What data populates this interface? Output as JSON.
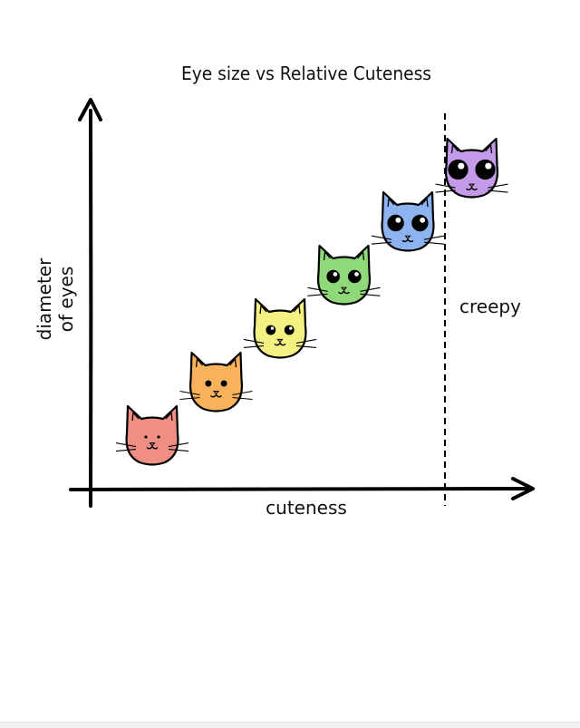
{
  "chart_data": {
    "type": "scatter",
    "title": "Eye size vs Relative Cuteness",
    "xlabel": "cuteness",
    "ylabel": [
      "diameter",
      "of eyes"
    ],
    "grid": false,
    "legend": "none",
    "annotations": [
      {
        "text": "creepy",
        "region": "beyond-dashed-threshold"
      }
    ],
    "series": [
      {
        "points": [
          {
            "x": 1,
            "y": 1,
            "color": "#ef8f84"
          },
          {
            "x": 2,
            "y": 2,
            "color": "#f9b25c"
          },
          {
            "x": 3,
            "y": 3,
            "color": "#f4f082"
          },
          {
            "x": 4,
            "y": 4,
            "color": "#8fd97a"
          },
          {
            "x": 5,
            "y": 5,
            "color": "#8db4f0"
          },
          {
            "x": 6,
            "y": 6,
            "color": "#c49be8"
          }
        ]
      }
    ]
  }
}
